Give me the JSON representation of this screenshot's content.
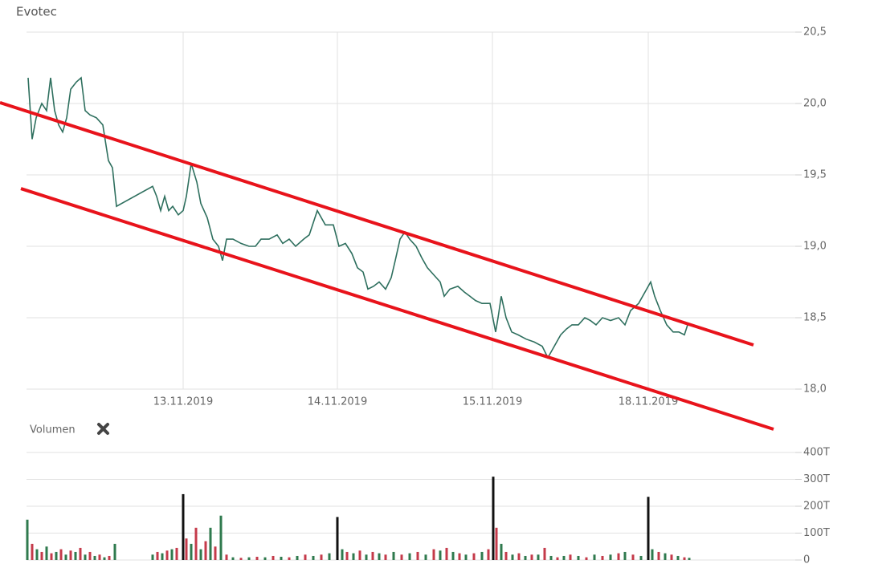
{
  "chart_data": [
    {
      "type": "line",
      "title": "Evotec",
      "xlim": [
        0,
        957
      ],
      "xticks": [
        {
          "value": 195,
          "label": "13.11.2019"
        },
        {
          "value": 387,
          "label": "14.11.2019"
        },
        {
          "value": 580,
          "label": "15.11.2019"
        },
        {
          "value": 774,
          "label": "18.11.2019"
        }
      ],
      "ylim": [
        18.0,
        20.5
      ],
      "yticks": [
        {
          "value": 18.0,
          "label": "18,0"
        },
        {
          "value": 18.5,
          "label": "18,5"
        },
        {
          "value": 19.0,
          "label": "19,0"
        },
        {
          "value": 19.5,
          "label": "19,5"
        },
        {
          "value": 20.0,
          "label": "20,0"
        },
        {
          "value": 20.5,
          "label": "20,5"
        }
      ],
      "grid": true,
      "x": [
        2,
        7,
        12,
        19,
        25,
        30,
        35,
        40,
        45,
        50,
        55,
        62,
        68,
        73,
        79,
        87,
        95,
        102,
        107,
        112,
        157,
        162,
        167,
        172,
        177,
        182,
        189,
        195,
        199,
        205,
        212,
        217,
        225,
        232,
        239,
        244,
        249,
        257,
        267,
        277,
        285,
        292,
        302,
        312,
        319,
        327,
        335,
        345,
        352,
        362,
        372,
        382,
        389,
        397,
        405,
        412,
        419,
        425,
        432,
        439,
        447,
        454,
        459,
        465,
        471,
        477,
        485,
        492,
        499,
        507,
        515,
        520,
        527,
        537,
        545,
        552,
        559,
        567,
        577,
        584,
        587,
        591,
        597,
        604,
        612,
        622,
        632,
        642,
        649,
        657,
        665,
        672,
        679,
        687,
        695,
        702,
        709,
        717,
        727,
        737,
        745,
        752,
        762,
        772,
        777,
        782,
        789,
        797,
        805,
        812,
        819,
        823
      ],
      "series": [
        {
          "color": "#2e6f5e",
          "values": [
            20.18,
            19.75,
            19.9,
            20.0,
            19.95,
            20.18,
            19.95,
            19.85,
            19.8,
            19.9,
            20.1,
            20.15,
            20.18,
            19.95,
            19.92,
            19.9,
            19.85,
            19.6,
            19.55,
            19.28,
            19.42,
            19.35,
            19.25,
            19.35,
            19.25,
            19.28,
            19.22,
            19.25,
            19.35,
            19.58,
            19.45,
            19.3,
            19.2,
            19.05,
            19.0,
            18.9,
            19.05,
            19.05,
            19.02,
            19.0,
            19.0,
            19.05,
            19.05,
            19.08,
            19.02,
            19.05,
            19.0,
            19.05,
            19.08,
            19.25,
            19.15,
            19.15,
            19.0,
            19.02,
            18.95,
            18.85,
            18.82,
            18.7,
            18.72,
            18.75,
            18.7,
            18.78,
            18.9,
            19.05,
            19.1,
            19.05,
            19.0,
            18.92,
            18.85,
            18.8,
            18.75,
            18.65,
            18.7,
            18.72,
            18.68,
            18.65,
            18.62,
            18.6,
            18.6,
            18.4,
            18.5,
            18.65,
            18.5,
            18.4,
            18.38,
            18.35,
            18.33,
            18.3,
            18.22,
            18.3,
            18.38,
            18.42,
            18.45,
            18.45,
            18.5,
            18.48,
            18.45,
            18.5,
            18.48,
            18.5,
            18.45,
            18.55,
            18.6,
            18.7,
            18.75,
            18.65,
            18.55,
            18.45,
            18.4,
            18.4,
            18.38,
            18.45
          ]
        }
      ],
      "trend_lines": [
        {
          "color": "#e8131b",
          "x": [
            -33,
            905
          ],
          "y": [
            20.006,
            18.309
          ]
        },
        {
          "color": "#e8131b",
          "x": [
            -7,
            930
          ],
          "y": [
            19.404,
            17.719
          ]
        }
      ]
    },
    {
      "type": "bar",
      "title": "Volumen",
      "xlim": [
        0,
        957
      ],
      "ylim": [
        0,
        400
      ],
      "yticks": [
        {
          "value": 0,
          "label": "0"
        },
        {
          "value": 100,
          "label": "100T"
        },
        {
          "value": 200,
          "label": "200T"
        },
        {
          "value": 300,
          "label": "300T"
        },
        {
          "value": 400,
          "label": "400T"
        }
      ],
      "grid": true,
      "x": [
        1,
        7,
        13,
        19,
        25,
        31,
        37,
        43,
        49,
        55,
        61,
        67,
        73,
        79,
        85,
        91,
        97,
        103,
        110,
        157,
        163,
        169,
        175,
        181,
        187,
        195,
        199,
        205,
        211,
        217,
        223,
        229,
        235,
        242,
        249,
        257,
        267,
        277,
        287,
        297,
        307,
        317,
        327,
        337,
        347,
        357,
        367,
        377,
        387,
        393,
        399,
        407,
        415,
        423,
        431,
        439,
        447,
        457,
        467,
        477,
        487,
        497,
        507,
        515,
        523,
        531,
        539,
        547,
        557,
        567,
        575,
        581,
        585,
        591,
        597,
        605,
        613,
        621,
        629,
        637,
        645,
        653,
        661,
        669,
        677,
        687,
        697,
        707,
        717,
        727,
        737,
        745,
        755,
        765,
        774,
        779,
        787,
        795,
        803,
        811,
        819,
        825
      ],
      "values": [
        150,
        60,
        40,
        30,
        50,
        25,
        30,
        40,
        20,
        35,
        30,
        45,
        20,
        30,
        15,
        20,
        10,
        15,
        60,
        20,
        30,
        25,
        35,
        40,
        45,
        245,
        80,
        60,
        120,
        40,
        70,
        120,
        50,
        165,
        20,
        10,
        8,
        10,
        12,
        10,
        15,
        12,
        10,
        15,
        20,
        15,
        20,
        25,
        160,
        40,
        30,
        25,
        35,
        20,
        30,
        25,
        20,
        30,
        20,
        25,
        30,
        20,
        40,
        35,
        45,
        30,
        25,
        20,
        25,
        30,
        40,
        310,
        120,
        60,
        30,
        20,
        25,
        15,
        20,
        20,
        45,
        15,
        10,
        15,
        20,
        15,
        10,
        20,
        15,
        20,
        25,
        30,
        20,
        15,
        235,
        40,
        30,
        25,
        20,
        15,
        10,
        8
      ],
      "colors": [
        "#2f7a4e",
        "#c43a4a",
        "#2f7a4e",
        "#c43a4a",
        "#2f7a4e",
        "#c43a4a",
        "#2f7a4e",
        "#c43a4a",
        "#2f7a4e",
        "#c43a4a",
        "#2f7a4e",
        "#c43a4a",
        "#2f7a4e",
        "#c43a4a",
        "#2f7a4e",
        "#c43a4a",
        "#2f7a4e",
        "#c43a4a",
        "#2f7a4e",
        "#2f7a4e",
        "#c43a4a",
        "#2f7a4e",
        "#c43a4a",
        "#2f7a4e",
        "#c43a4a",
        "#111111",
        "#c43a4a",
        "#2f7a4e",
        "#c43a4a",
        "#2f7a4e",
        "#c43a4a",
        "#2f7a4e",
        "#c43a4a",
        "#2f7a4e",
        "#c43a4a",
        "#2f7a4e",
        "#c43a4a",
        "#2f7a4e",
        "#c43a4a",
        "#2f7a4e",
        "#c43a4a",
        "#2f7a4e",
        "#c43a4a",
        "#2f7a4e",
        "#c43a4a",
        "#2f7a4e",
        "#c43a4a",
        "#2f7a4e",
        "#111111",
        "#2f7a4e",
        "#c43a4a",
        "#2f7a4e",
        "#c43a4a",
        "#2f7a4e",
        "#c43a4a",
        "#2f7a4e",
        "#c43a4a",
        "#2f7a4e",
        "#c43a4a",
        "#2f7a4e",
        "#c43a4a",
        "#2f7a4e",
        "#c43a4a",
        "#2f7a4e",
        "#c43a4a",
        "#2f7a4e",
        "#c43a4a",
        "#2f7a4e",
        "#c43a4a",
        "#2f7a4e",
        "#c43a4a",
        "#111111",
        "#c43a4a",
        "#2f7a4e",
        "#c43a4a",
        "#2f7a4e",
        "#c43a4a",
        "#2f7a4e",
        "#c43a4a",
        "#2f7a4e",
        "#c43a4a",
        "#2f7a4e",
        "#c43a4a",
        "#2f7a4e",
        "#c43a4a",
        "#2f7a4e",
        "#c43a4a",
        "#2f7a4e",
        "#c43a4a",
        "#2f7a4e",
        "#c43a4a",
        "#2f7a4e",
        "#c43a4a",
        "#2f7a4e",
        "#111111",
        "#2f7a4e",
        "#c43a4a",
        "#2f7a4e",
        "#c43a4a",
        "#2f7a4e",
        "#c43a4a",
        "#2f7a4e"
      ]
    }
  ]
}
